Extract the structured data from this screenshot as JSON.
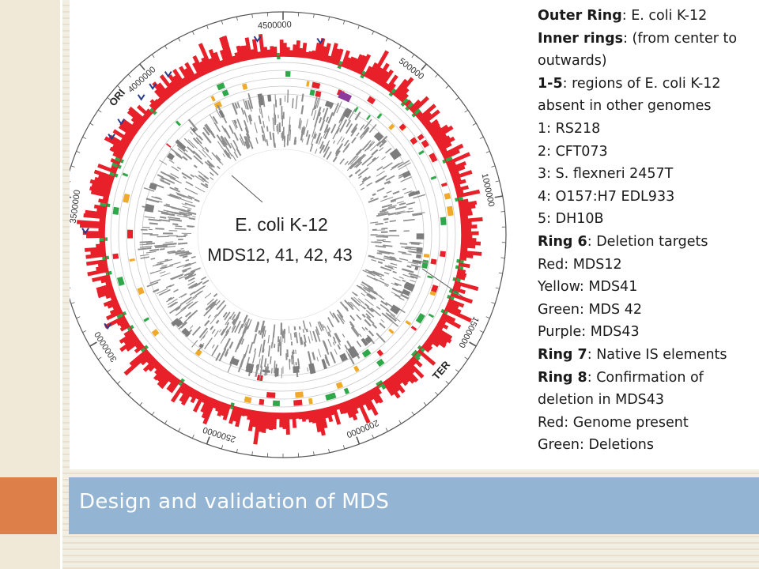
{
  "slide": {
    "title": "Design and validation of MDS"
  },
  "genome_map": {
    "center_label_line1": "E. coli K-12",
    "center_label_line2": "MDS12, 41, 42, 43",
    "scale_labels": [
      "4500000",
      "500000",
      "1000000",
      "1500000",
      "2000000",
      "2500000",
      "3000000",
      "3500000",
      "4000000"
    ],
    "ori_label": "ORI",
    "ter_label": "TER",
    "colors": {
      "outer_ring": "#e8202a",
      "green_marks": "#2fa84a",
      "yellow_marks": "#f0a92a",
      "purple_mark": "#8b3a9c",
      "gray_rings": "#8e8e8e",
      "arrow_marks": "#2a3c8c"
    }
  },
  "legend": {
    "lines": [
      {
        "bold": "Outer Ring",
        "text": ": E. coli K-12"
      },
      {
        "bold": "Inner rings",
        "text": ": (from center to"
      },
      {
        "bold": "",
        "text": "outwards)"
      },
      {
        "bold": "1-5",
        "text": ": regions of E. coli K-12"
      },
      {
        "bold": "",
        "text": "absent in other genomes"
      },
      {
        "bold": "",
        "text": "1: RS218"
      },
      {
        "bold": "",
        "text": "2: CFT073"
      },
      {
        "bold": "",
        "text": "3: S. flexneri 2457T"
      },
      {
        "bold": "",
        "text": "4: O157:H7 EDL933"
      },
      {
        "bold": "",
        "text": "5: DH10B"
      },
      {
        "bold": "Ring 6",
        "text": ": Deletion targets"
      },
      {
        "bold": "",
        "text": "Red: MDS12"
      },
      {
        "bold": "",
        "text": "Yellow: MDS41"
      },
      {
        "bold": "",
        "text": "Green: MDS 42"
      },
      {
        "bold": "",
        "text": "Purple: MDS43"
      },
      {
        "bold": "Ring  7",
        "text": ": Native IS elements"
      },
      {
        "bold": "Ring 8",
        "text": ": Confirmation of"
      },
      {
        "bold": "",
        "text": "deletion in MDS43"
      },
      {
        "bold": "",
        "text": "Red: Genome present"
      },
      {
        "bold": "",
        "text": "Green: Deletions"
      }
    ]
  }
}
